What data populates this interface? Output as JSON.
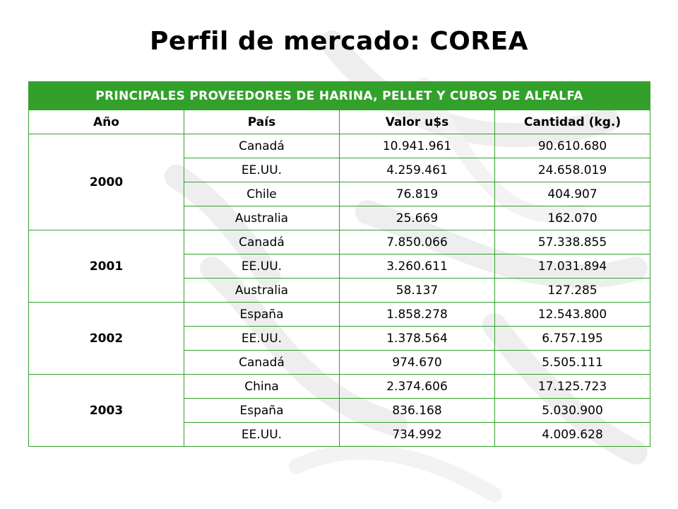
{
  "title": "Perfil de mercado: COREA",
  "table": {
    "caption": "PRINCIPALES PROVEEDORES DE HARINA, PELLET Y CUBOS DE ALFALFA",
    "headers": [
      "Año",
      "País",
      "Valor u$s",
      "Cantidad (kg.)"
    ],
    "groups": [
      {
        "year": "2000",
        "rows": [
          {
            "country": "Canadá",
            "value": "10.941.961",
            "quantity": "90.610.680"
          },
          {
            "country": "EE.UU.",
            "value": "4.259.461",
            "quantity": "24.658.019"
          },
          {
            "country": "Chile",
            "value": "76.819",
            "quantity": "404.907"
          },
          {
            "country": "Australia",
            "value": "25.669",
            "quantity": "162.070"
          }
        ]
      },
      {
        "year": "2001",
        "rows": [
          {
            "country": "Canadá",
            "value": "7.850.066",
            "quantity": "57.338.855"
          },
          {
            "country": "EE.UU.",
            "value": "3.260.611",
            "quantity": "17.031.894"
          },
          {
            "country": "Australia",
            "value": "58.137",
            "quantity": "127.285"
          }
        ]
      },
      {
        "year": "2002",
        "rows": [
          {
            "country": "España",
            "value": "1.858.278",
            "quantity": "12.543.800"
          },
          {
            "country": "EE.UU.",
            "value": "1.378.564",
            "quantity": "6.757.195"
          },
          {
            "country": "Canadá",
            "value": "974.670",
            "quantity": "5.505.111"
          }
        ]
      },
      {
        "year": "2003",
        "rows": [
          {
            "country": "China",
            "value": "2.374.606",
            "quantity": "17.125.723"
          },
          {
            "country": "España",
            "value": "836.168",
            "quantity": "5.030.900"
          },
          {
            "country": "EE.UU.",
            "value": "734.992",
            "quantity": "4.009.628"
          }
        ]
      }
    ]
  },
  "colors": {
    "accent_green": "#33a02c",
    "background_watermark": "#f2f2f2"
  }
}
